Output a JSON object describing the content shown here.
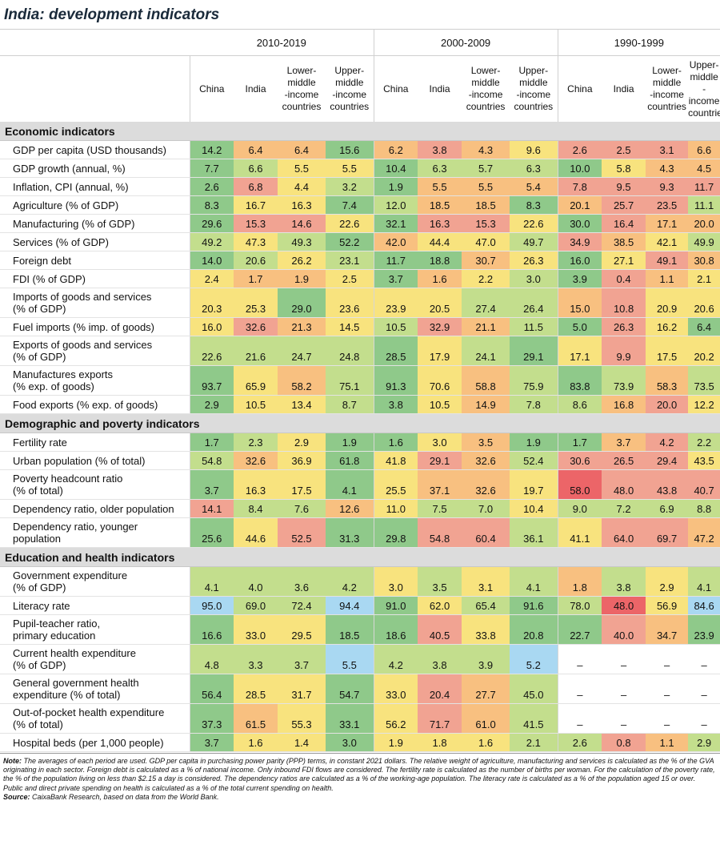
{
  "title": "India: development indicators",
  "periods": [
    "2010-2019",
    "2000-2009",
    "1990-1999"
  ],
  "columns": [
    "China",
    "India",
    "Lower-\nmiddle\n-income\ncountries",
    "Upper-\nmiddle\n-income\ncountries"
  ],
  "colors": {
    "dark_green": "#8fc98a",
    "light_green": "#c3de8d",
    "yellow": "#f8e37e",
    "orange": "#f8c080",
    "light_red": "#f1a392",
    "red": "#ec6568",
    "blue": "#a9d8f2",
    "section_bg": "#dcdcdc"
  },
  "sections": [
    {
      "title": "Economic indicators",
      "rows": [
        {
          "label": "GDP per capita (USD thousands)",
          "values": [
            "14.2",
            "6.4",
            "6.4",
            "15.6",
            "6.2",
            "3.8",
            "4.3",
            "9.6",
            "2.6",
            "2.5",
            "3.1",
            "6.6"
          ],
          "colors": [
            "G",
            "O",
            "O",
            "G",
            "O",
            "R",
            "O",
            "Y",
            "R",
            "R",
            "R",
            "O"
          ]
        },
        {
          "label": "GDP growth (annual, %)",
          "values": [
            "7.7",
            "6.6",
            "5.5",
            "5.5",
            "10.4",
            "6.3",
            "5.7",
            "6.3",
            "10.0",
            "5.8",
            "4.3",
            "4.5"
          ],
          "colors": [
            "G",
            "L",
            "Y",
            "Y",
            "G",
            "L",
            "L",
            "L",
            "G",
            "Y",
            "O",
            "O"
          ]
        },
        {
          "label": "Inflation, CPI (annual, %)",
          "values": [
            "2.6",
            "6.8",
            "4.4",
            "3.2",
            "1.9",
            "5.5",
            "5.5",
            "5.4",
            "7.8",
            "9.5",
            "9.3",
            "11.7"
          ],
          "colors": [
            "G",
            "R",
            "Y",
            "L",
            "G",
            "O",
            "O",
            "O",
            "R",
            "R",
            "R",
            "R"
          ]
        },
        {
          "label": "Agriculture (% of GDP)",
          "values": [
            "8.3",
            "16.7",
            "16.3",
            "7.4",
            "12.0",
            "18.5",
            "18.5",
            "8.3",
            "20.1",
            "25.7",
            "23.5",
            "11.1"
          ],
          "colors": [
            "G",
            "Y",
            "Y",
            "G",
            "L",
            "O",
            "O",
            "G",
            "O",
            "R",
            "R",
            "L"
          ]
        },
        {
          "label": "Manufacturing (% of GDP)",
          "values": [
            "29.6",
            "15.3",
            "14.6",
            "22.6",
            "32.1",
            "16.3",
            "15.3",
            "22.6",
            "30.0",
            "16.4",
            "17.1",
            "20.0"
          ],
          "colors": [
            "G",
            "R",
            "R",
            "Y",
            "G",
            "R",
            "R",
            "Y",
            "G",
            "R",
            "O",
            "O"
          ]
        },
        {
          "label": "Services (% of GDP)",
          "values": [
            "49.2",
            "47.3",
            "49.3",
            "52.2",
            "42.0",
            "44.4",
            "47.0",
            "49.7",
            "34.9",
            "38.5",
            "42.1",
            "49.9"
          ],
          "colors": [
            "L",
            "Y",
            "L",
            "G",
            "O",
            "Y",
            "Y",
            "L",
            "R",
            "O",
            "Y",
            "L"
          ]
        },
        {
          "label": "Foreign debt",
          "values": [
            "14.0",
            "20.6",
            "26.2",
            "23.1",
            "11.7",
            "18.8",
            "30.7",
            "26.3",
            "16.0",
            "27.1",
            "49.1",
            "30.8"
          ],
          "colors": [
            "G",
            "L",
            "Y",
            "L",
            "G",
            "G",
            "O",
            "Y",
            "G",
            "Y",
            "R",
            "O"
          ]
        },
        {
          "label": "FDI (% of GDP)",
          "values": [
            "2.4",
            "1.7",
            "1.9",
            "2.5",
            "3.7",
            "1.6",
            "2.2",
            "3.0",
            "3.9",
            "0.4",
            "1.1",
            "2.1"
          ],
          "colors": [
            "Y",
            "O",
            "O",
            "Y",
            "G",
            "O",
            "Y",
            "L",
            "G",
            "R",
            "O",
            "Y"
          ]
        },
        {
          "label": "Imports of goods and services\n(% of GDP)",
          "values": [
            "20.3",
            "25.3",
            "29.0",
            "23.6",
            "23.9",
            "20.5",
            "27.4",
            "26.4",
            "15.0",
            "10.8",
            "20.9",
            "20.6"
          ],
          "colors": [
            "Y",
            "Y",
            "G",
            "Y",
            "Y",
            "Y",
            "L",
            "L",
            "O",
            "R",
            "Y",
            "Y"
          ]
        },
        {
          "label": "Fuel imports (% imp. of goods)",
          "values": [
            "16.0",
            "32.6",
            "21.3",
            "14.5",
            "10.5",
            "32.9",
            "21.1",
            "11.5",
            "5.0",
            "26.3",
            "16.2",
            "6.4"
          ],
          "colors": [
            "Y",
            "R",
            "O",
            "Y",
            "L",
            "R",
            "O",
            "L",
            "G",
            "R",
            "Y",
            "G"
          ]
        },
        {
          "label": "Exports of goods and services\n(% of GDP)",
          "values": [
            "22.6",
            "21.6",
            "24.7",
            "24.8",
            "28.5",
            "17.9",
            "24.1",
            "29.1",
            "17.1",
            "9.9",
            "17.5",
            "20.2"
          ],
          "colors": [
            "L",
            "L",
            "L",
            "L",
            "G",
            "Y",
            "L",
            "G",
            "Y",
            "R",
            "Y",
            "Y"
          ]
        },
        {
          "label": "Manufactures exports\n(% exp. of goods)",
          "values": [
            "93.7",
            "65.9",
            "58.2",
            "75.1",
            "91.3",
            "70.6",
            "58.8",
            "75.9",
            "83.8",
            "73.9",
            "58.3",
            "73.5"
          ],
          "colors": [
            "G",
            "Y",
            "O",
            "L",
            "G",
            "Y",
            "O",
            "L",
            "G",
            "L",
            "O",
            "L"
          ]
        },
        {
          "label": "Food exports (% exp. of goods)",
          "values": [
            "2.9",
            "10.5",
            "13.4",
            "8.7",
            "3.8",
            "10.5",
            "14.9",
            "7.8",
            "8.6",
            "16.8",
            "20.0",
            "12.2"
          ],
          "colors": [
            "G",
            "Y",
            "Y",
            "L",
            "G",
            "Y",
            "O",
            "L",
            "L",
            "O",
            "R",
            "Y"
          ]
        }
      ]
    },
    {
      "title": "Demographic and poverty indicators",
      "rows": [
        {
          "label": "Fertility rate",
          "values": [
            "1.7",
            "2.3",
            "2.9",
            "1.9",
            "1.6",
            "3.0",
            "3.5",
            "1.9",
            "1.7",
            "3.7",
            "4.2",
            "2.2"
          ],
          "colors": [
            "G",
            "L",
            "Y",
            "G",
            "G",
            "Y",
            "O",
            "G",
            "G",
            "O",
            "R",
            "L"
          ]
        },
        {
          "label": "Urban population (% of total)",
          "values": [
            "54.8",
            "32.6",
            "36.9",
            "61.8",
            "41.8",
            "29.1",
            "32.6",
            "52.4",
            "30.6",
            "26.5",
            "29.4",
            "43.5"
          ],
          "colors": [
            "L",
            "O",
            "Y",
            "G",
            "Y",
            "R",
            "O",
            "L",
            "R",
            "R",
            "R",
            "Y"
          ]
        },
        {
          "label": "Poverty headcount ratio\n(% of total)",
          "values": [
            "3.7",
            "16.3",
            "17.5",
            "4.1",
            "25.5",
            "37.1",
            "32.6",
            "19.7",
            "58.0",
            "48.0",
            "43.8",
            "40.7"
          ],
          "colors": [
            "G",
            "Y",
            "Y",
            "G",
            "Y",
            "O",
            "O",
            "Y",
            "D",
            "R",
            "R",
            "R"
          ]
        },
        {
          "label": "Dependency ratio, older population",
          "values": [
            "14.1",
            "8.4",
            "7.6",
            "12.6",
            "11.0",
            "7.5",
            "7.0",
            "10.4",
            "9.0",
            "7.2",
            "6.9",
            "8.8"
          ],
          "colors": [
            "R",
            "L",
            "L",
            "O",
            "Y",
            "L",
            "L",
            "Y",
            "L",
            "L",
            "L",
            "L"
          ]
        },
        {
          "label": "Dependency ratio, younger\npopulation",
          "values": [
            "25.6",
            "44.6",
            "52.5",
            "31.3",
            "29.8",
            "54.8",
            "60.4",
            "36.1",
            "41.1",
            "64.0",
            "69.7",
            "47.2"
          ],
          "colors": [
            "G",
            "Y",
            "R",
            "G",
            "G",
            "R",
            "R",
            "L",
            "Y",
            "R",
            "R",
            "O"
          ]
        }
      ]
    },
    {
      "title": "Education and health indicators",
      "rows": [
        {
          "label": "Government expenditure\n(% of GDP)",
          "values": [
            "4.1",
            "4.0",
            "3.6",
            "4.2",
            "3.0",
            "3.5",
            "3.1",
            "4.1",
            "1.8",
            "3.8",
            "2.9",
            "4.1"
          ],
          "colors": [
            "L",
            "L",
            "L",
            "L",
            "Y",
            "L",
            "Y",
            "L",
            "O",
            "L",
            "Y",
            "L"
          ]
        },
        {
          "label": "Literacy rate",
          "values": [
            "95.0",
            "69.0",
            "72.4",
            "94.4",
            "91.0",
            "62.0",
            "65.4",
            "91.6",
            "78.0",
            "48.0",
            "56.9",
            "84.6"
          ],
          "colors": [
            "B",
            "L",
            "L",
            "B",
            "G",
            "Y",
            "L",
            "G",
            "L",
            "D",
            "Y",
            "B"
          ]
        },
        {
          "label": "Pupil-teacher ratio,\nprimary education",
          "values": [
            "16.6",
            "33.0",
            "29.5",
            "18.5",
            "18.6",
            "40.5",
            "33.8",
            "20.8",
            "22.7",
            "40.0",
            "34.7",
            "23.9"
          ],
          "colors": [
            "G",
            "Y",
            "Y",
            "G",
            "G",
            "R",
            "Y",
            "G",
            "G",
            "R",
            "O",
            "G"
          ]
        },
        {
          "label": "Current health expenditure\n(% of GDP)",
          "values": [
            "4.8",
            "3.3",
            "3.7",
            "5.5",
            "4.2",
            "3.8",
            "3.9",
            "5.2",
            "–",
            "–",
            "–",
            "–"
          ],
          "colors": [
            "L",
            "L",
            "L",
            "B",
            "L",
            "L",
            "L",
            "B",
            "N",
            "N",
            "N",
            "N"
          ]
        },
        {
          "label": "General government health\nexpenditure (% of total)",
          "values": [
            "56.4",
            "28.5",
            "31.7",
            "54.7",
            "33.0",
            "20.4",
            "27.7",
            "45.0",
            "–",
            "–",
            "–",
            "–"
          ],
          "colors": [
            "G",
            "Y",
            "Y",
            "G",
            "Y",
            "R",
            "O",
            "L",
            "N",
            "N",
            "N",
            "N"
          ]
        },
        {
          "label": "Out-of-pocket health expenditure\n(% of total)",
          "values": [
            "37.3",
            "61.5",
            "55.3",
            "33.1",
            "56.2",
            "71.7",
            "61.0",
            "41.5",
            "–",
            "–",
            "–",
            "–"
          ],
          "colors": [
            "G",
            "O",
            "Y",
            "G",
            "Y",
            "R",
            "O",
            "L",
            "N",
            "N",
            "N",
            "N"
          ]
        },
        {
          "label": "Hospital beds (per 1,000 people)",
          "values": [
            "3.7",
            "1.6",
            "1.4",
            "3.0",
            "1.9",
            "1.8",
            "1.6",
            "2.1",
            "2.6",
            "0.8",
            "1.1",
            "2.9"
          ],
          "colors": [
            "G",
            "Y",
            "Y",
            "G",
            "Y",
            "Y",
            "Y",
            "L",
            "L",
            "R",
            "O",
            "L"
          ]
        }
      ]
    }
  ],
  "note_label": "Note:",
  "note_text": " The averages of each period are used. GDP per capita in purchasing power parity (PPP) terms, in constant 2021 dollars. The relative weight of agriculture, manufacturing and services is calculated as the % of the GVA originating in each sector. Foreign debt is calculated as a % of national income. Only inbound FDI flows are considered. The fertility rate is calculated as the number of births per woman. For the calculation of the poverty rate, the % of the population living on less than $2.15 a day is considered. The dependency ratios are calculated as a % of the working-age population. The literacy rate is calculated as a % of the population aged 15 or over. Public and direct private spending on health is calculated as a % of the total current spending on health.",
  "source_label": "Source:",
  "source_text": " CaixaBank Research, based on data from the World Bank."
}
